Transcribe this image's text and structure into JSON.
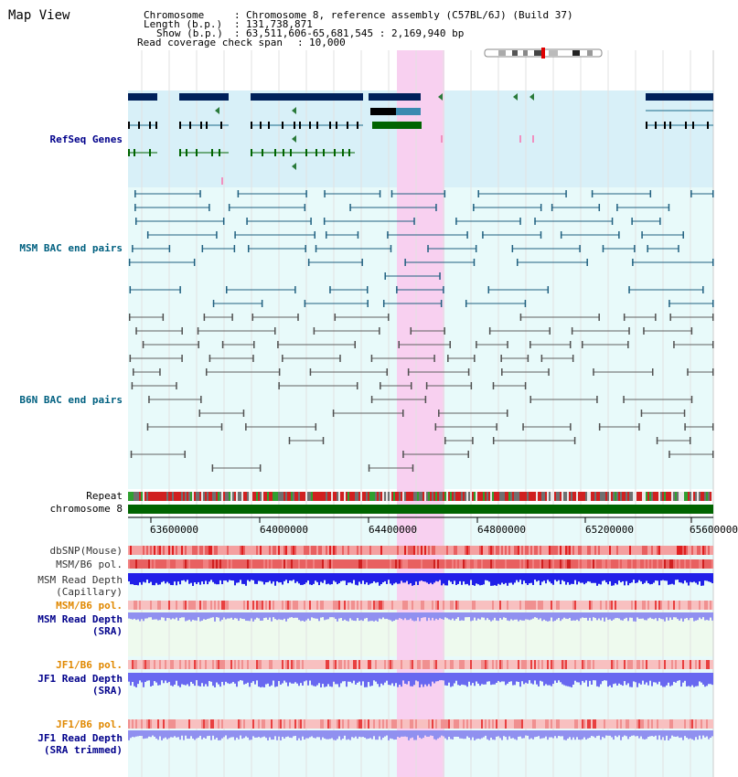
{
  "view_title": "Map View",
  "info": {
    "chromosome_label": "Chromosome",
    "chromosome_value": "Chromosome 8, reference assembly (C57BL/6J) (Build 37)",
    "length_label": "Length (b.p.)",
    "length_value": "131,738,871",
    "show_label": "Show (b.p.)",
    "show_value": "63,511,606-65,681,545 : 2,169,940 bp",
    "coverage_label": "Read coverage check span",
    "coverage_value": "10,000"
  },
  "tracks": {
    "refseq": "RefSeq Genes",
    "msm_bac": "MSM BAC end pairs",
    "b6n_bac": "B6N BAC end pairs",
    "repeat": "Repeat",
    "chromosome": "chromosome 8",
    "dbsnp": "dbSNP(Mouse)",
    "msm_b6_pol_1": "MSM/B6 pol.",
    "msm_read_depth_cap_1": "MSM Read Depth",
    "msm_read_depth_cap_2": "(Capillary)",
    "msm_b6_pol_2": "MSM/B6 pol.",
    "msm_read_depth_sra_1": "MSM Read Depth",
    "msm_read_depth_sra_2": "(SRA)",
    "jf1_b6_pol_1": "JF1/B6 pol.",
    "jf1_read_depth_sra_1": "JF1 Read Depth",
    "jf1_read_depth_sra_2": "(SRA)",
    "jf1_b6_pol_2": "JF1/B6 pol.",
    "jf1_read_depth_trim_1": "JF1 Read Depth",
    "jf1_read_depth_trim_2": "(SRA trimmed)"
  },
  "axis": {
    "ticks": [
      "63600000",
      "64000000",
      "64400000",
      "64800000",
      "65200000",
      "65600000"
    ]
  },
  "colors": {
    "label_blue": "#00008b",
    "label_teal": "#006080",
    "label_orange": "#e08800",
    "gene_dark": "#00205a",
    "gene_green": "#006400",
    "highlight": "#f8d0f0"
  }
}
